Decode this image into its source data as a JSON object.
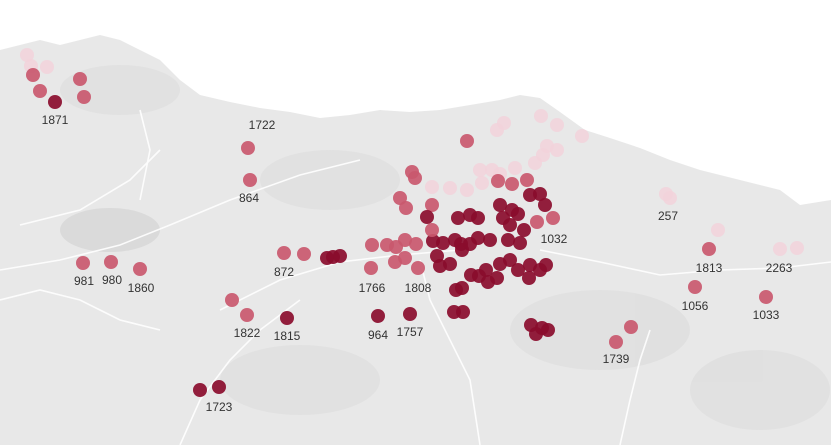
{
  "map": {
    "colors": {
      "low": "#f2d2da",
      "mid": "#c9586e",
      "high": "#8a0c2c",
      "land": "#e6e6e6",
      "sea": "#ffffff",
      "road": "#ffffff"
    },
    "labels": [
      {
        "id": "l1871",
        "text": "1871"
      },
      {
        "id": "l1722",
        "text": "1722"
      },
      {
        "id": "l864",
        "text": "864"
      },
      {
        "id": "l257",
        "text": "257"
      },
      {
        "id": "l1032",
        "text": "1032"
      },
      {
        "id": "l1813",
        "text": "1813"
      },
      {
        "id": "l2263",
        "text": "2263"
      },
      {
        "id": "l981",
        "text": "981"
      },
      {
        "id": "l980",
        "text": "980"
      },
      {
        "id": "l1860",
        "text": "1860"
      },
      {
        "id": "l872",
        "text": "872"
      },
      {
        "id": "l1766",
        "text": "1766"
      },
      {
        "id": "l1808",
        "text": "1808"
      },
      {
        "id": "l1056",
        "text": "1056"
      },
      {
        "id": "l1033",
        "text": "1033"
      },
      {
        "id": "l1822",
        "text": "1822"
      },
      {
        "id": "l1815",
        "text": "1815"
      },
      {
        "id": "l964",
        "text": "964"
      },
      {
        "id": "l1757",
        "text": "1757"
      },
      {
        "id": "l1739",
        "text": "1739"
      },
      {
        "id": "l1723",
        "text": "1723"
      }
    ]
  }
}
